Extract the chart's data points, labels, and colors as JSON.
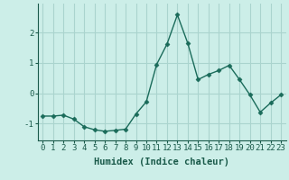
{
  "x": [
    0,
    1,
    2,
    3,
    4,
    5,
    6,
    7,
    8,
    9,
    10,
    11,
    12,
    13,
    14,
    15,
    16,
    17,
    18,
    19,
    20,
    21,
    22,
    23
  ],
  "y": [
    -0.75,
    -0.75,
    -0.72,
    -0.85,
    -1.1,
    -1.2,
    -1.25,
    -1.22,
    -1.18,
    -0.68,
    -0.28,
    0.95,
    1.62,
    2.58,
    1.65,
    0.45,
    0.62,
    0.75,
    0.92,
    0.45,
    -0.05,
    -0.62,
    -0.32,
    -0.05
  ],
  "line_color": "#1a6b5a",
  "marker": "D",
  "marker_size": 2.5,
  "linewidth": 1.0,
  "bg_color": "#cceee8",
  "grid_color": "#aad4ce",
  "xlabel": "Humidex (Indice chaleur)",
  "xlabel_fontsize": 7.5,
  "tick_fontsize": 6.5,
  "ytick_labels": [
    "-1",
    "0",
    "1",
    "2"
  ],
  "ytick_vals": [
    -1,
    0,
    1,
    2
  ],
  "xticks": [
    0,
    1,
    2,
    3,
    4,
    5,
    6,
    7,
    8,
    9,
    10,
    11,
    12,
    13,
    14,
    15,
    16,
    17,
    18,
    19,
    20,
    21,
    22,
    23
  ],
  "xlim": [
    -0.5,
    23.5
  ],
  "ylim": [
    -1.55,
    2.95
  ]
}
